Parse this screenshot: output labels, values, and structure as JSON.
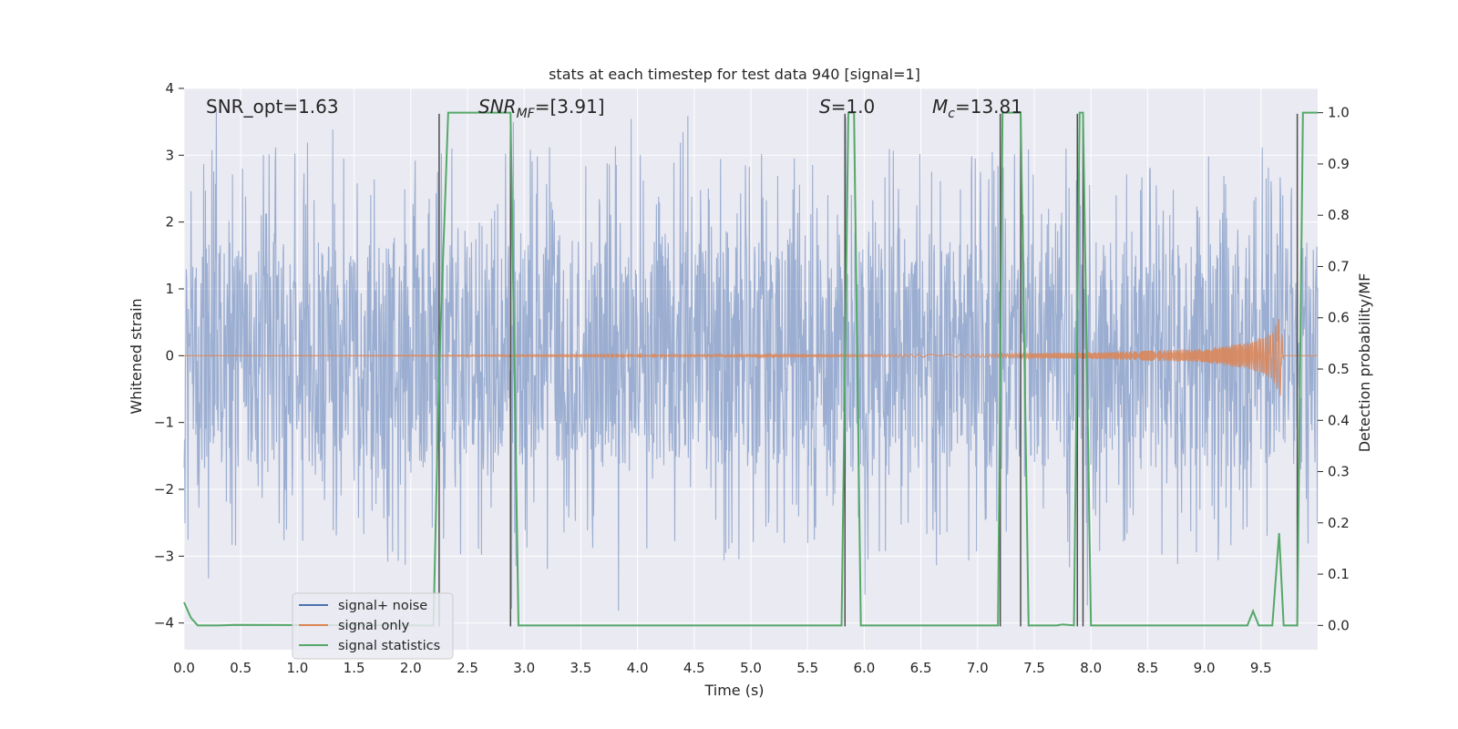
{
  "chart_data": {
    "type": "line",
    "title": "stats at each timestep for test data 940 [signal=1]",
    "xlabel": "Time (s)",
    "ylabel": "Whitened strain",
    "y2label": "Detection probability/MF",
    "xlim": [
      0,
      10
    ],
    "ylim": [
      -4.4,
      4
    ],
    "y2lim": [
      -0.0474,
      1.0474
    ],
    "x_ticks": [
      "0.0",
      "0.5",
      "1.0",
      "1.5",
      "2.0",
      "2.5",
      "3.0",
      "3.5",
      "4.0",
      "4.5",
      "5.0",
      "5.5",
      "6.0",
      "6.5",
      "7.0",
      "7.5",
      "8.0",
      "8.5",
      "9.0",
      "9.5"
    ],
    "y_ticks": [
      "−4",
      "−3",
      "−2",
      "−1",
      "0",
      "1",
      "2",
      "3",
      "4"
    ],
    "y2_ticks": [
      "0.0",
      "0.1",
      "0.2",
      "0.3",
      "0.4",
      "0.5",
      "0.6",
      "0.7",
      "0.8",
      "0.9",
      "1.0"
    ],
    "grid": true,
    "legend_position": "lower-left",
    "annotations": {
      "snr_opt": "SNR_opt=1.63",
      "snr_mf": "SNR_MF=[3.91]",
      "snr_mf_main": "SNR",
      "snr_mf_sub": "MF",
      "snr_mf_value": "=[3.91]",
      "s": "S=1.0",
      "s_main": "S",
      "s_value": "=1.0",
      "mc": "M_c=13.81",
      "mc_main": "M",
      "mc_sub": "c",
      "mc_value": "=13.81"
    },
    "colors": {
      "background": "#eaeaf2",
      "grid": "#ffffff",
      "noise": "#4c72b0",
      "signal": "#dd8452",
      "stats": "#55a868",
      "vlines": "#4d4d4d"
    },
    "series": [
      {
        "name": "signal+ noise",
        "color": "#4c72b0",
        "description": "noise band, typical amplitude ±1.7, peaks to about ±3.2",
        "amplitude_core": 1.7,
        "amplitude_peak": 3.2
      },
      {
        "name": "signal only",
        "color": "#dd8452",
        "x": [
          0,
          7.0,
          8.0,
          9.0,
          9.4,
          9.6,
          9.67,
          9.7,
          10
        ],
        "envelope": [
          0.0,
          0.02,
          0.05,
          0.1,
          0.2,
          0.35,
          0.6,
          0.0,
          0.0
        ]
      },
      {
        "name": "signal statistics",
        "color": "#55a868",
        "x": [
          0.0,
          0.06,
          0.12,
          0.3,
          0.45,
          2.2,
          2.25,
          2.33,
          2.88,
          2.95,
          3.0,
          5.8,
          5.86,
          5.91,
          5.97,
          7.18,
          7.22,
          7.3,
          7.38,
          7.45,
          7.5,
          7.7,
          7.75,
          7.85,
          7.9,
          7.93,
          8.0,
          8.05,
          9.38,
          9.43,
          9.48,
          9.6,
          9.66,
          9.7,
          9.82,
          9.87,
          9.9,
          10.0
        ],
        "y": [
          0.045,
          0.015,
          0.0,
          0.0,
          0.001,
          0.0,
          0.5,
          1.0,
          1.0,
          0.0,
          0.0,
          0.0,
          1.0,
          1.0,
          0.0,
          0.0,
          1.0,
          1.0,
          1.0,
          0.0,
          0.0,
          0.0,
          0.002,
          0.0,
          1.0,
          1.0,
          0.0,
          0.0,
          0.0,
          0.028,
          0.0,
          0.0,
          0.18,
          0.0,
          0.0,
          1.0,
          1.0,
          1.0
        ]
      }
    ],
    "vlines": [
      2.25,
      2.88,
      5.83,
      7.2,
      7.38,
      7.88,
      7.93,
      9.82
    ],
    "vline_ymax": 3.62
  }
}
